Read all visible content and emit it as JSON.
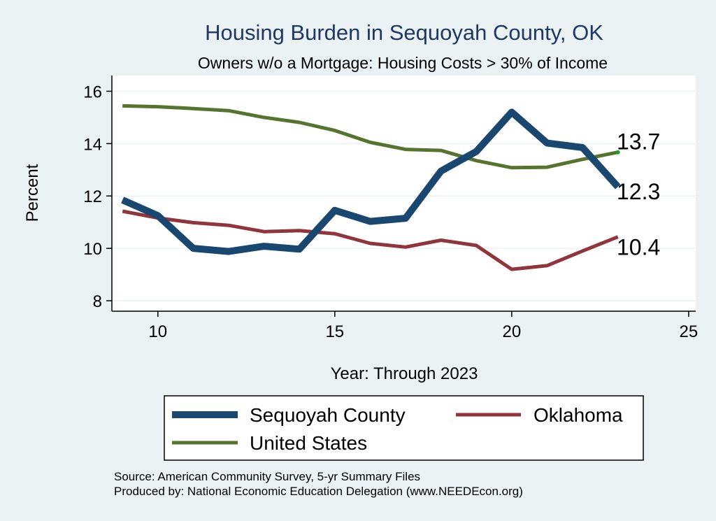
{
  "chart_data": {
    "type": "line",
    "title": "Housing Burden in Sequoyah County, OK",
    "subtitle": "Owners w/o a Mortgage: Housing Costs > 30% of Income",
    "xlabel": "Year: Through 2023",
    "ylabel": "Percent",
    "xlim": [
      8.7,
      25.2
    ],
    "ylim": [
      7.6,
      16.6
    ],
    "xticks": [
      10,
      15,
      20,
      25
    ],
    "yticks": [
      8,
      10,
      12,
      14,
      16
    ],
    "x": [
      9,
      10,
      11,
      12,
      13,
      14,
      15,
      16,
      17,
      18,
      19,
      20,
      21,
      22,
      23
    ],
    "series": [
      {
        "name": "Sequoyah County",
        "color": "#1a476f",
        "width": 10,
        "values": [
          11.85,
          11.25,
          10.0,
          9.88,
          10.08,
          9.97,
          11.45,
          11.03,
          11.15,
          12.95,
          13.7,
          15.2,
          14.02,
          13.85,
          12.35
        ],
        "end_label": "12.3"
      },
      {
        "name": "Oklahoma",
        "color": "#90353b",
        "width": 5,
        "values": [
          11.42,
          11.16,
          10.98,
          10.88,
          10.64,
          10.68,
          10.56,
          10.19,
          10.05,
          10.31,
          10.11,
          9.2,
          9.34,
          9.9,
          10.44
        ],
        "end_label": "10.4"
      },
      {
        "name": "United States",
        "color": "#55752f",
        "width": 5,
        "values": [
          15.44,
          15.41,
          15.34,
          15.26,
          15.0,
          14.81,
          14.5,
          14.05,
          13.78,
          13.74,
          13.35,
          13.08,
          13.1,
          13.4,
          13.67
        ],
        "end_label": "13.7"
      }
    ],
    "legend": {
      "placement": "bottom",
      "entries": [
        "Sequoyah County",
        "Oklahoma",
        "United States"
      ]
    },
    "grid": true
  },
  "source_lines": [
    "Source: American Community Survey, 5-yr Summary Files",
    "Produced by: National Economic Education Delegation (www.NEEDEcon.org)"
  ],
  "colors": {
    "background": "#eaf2f3",
    "plot_background": "#ffffff",
    "grid": "#eaf2f3"
  }
}
